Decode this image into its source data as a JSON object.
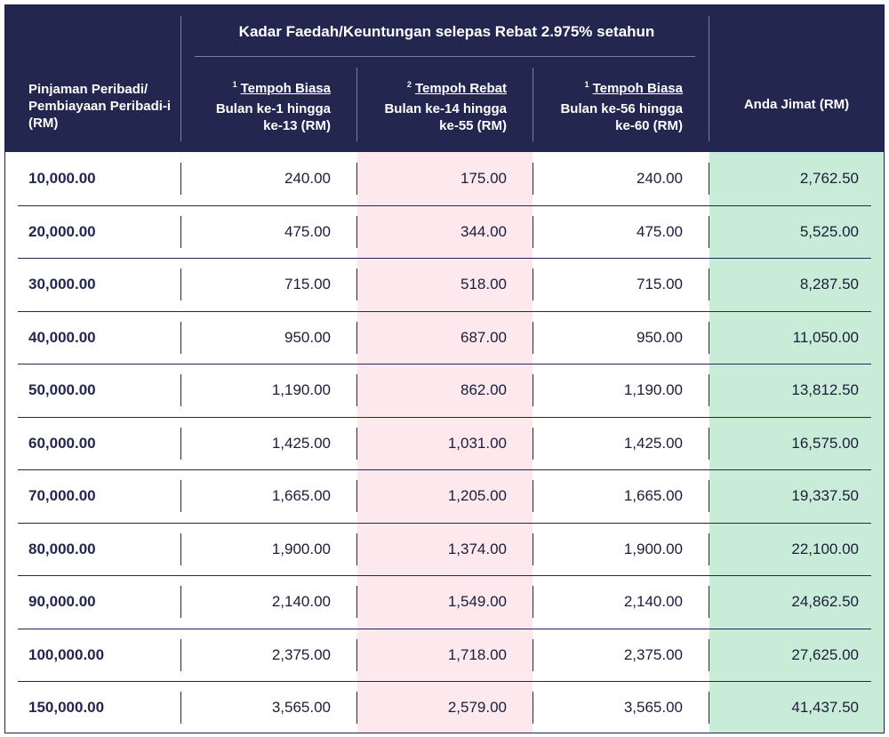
{
  "header": {
    "left_label": "Pinjaman Peribadi/ Pembiayaan Peribadi-i (RM)",
    "group_title": "Kadar Faedah/Keuntungan selepas Rebat 2.975% setahun",
    "columns": [
      {
        "marker": "1",
        "title": "Tempoh Biasa",
        "line1": "Bulan ke-1 hingga",
        "line2": "ke-13 (RM)"
      },
      {
        "marker": "2",
        "title": "Tempoh Rebat",
        "line1": "Bulan ke-14 hingga",
        "line2": "ke-55 (RM)"
      },
      {
        "marker": "1",
        "title": "Tempoh Biasa",
        "line1": "Bulan ke-56 hingga",
        "line2": "ke-60 (RM)"
      }
    ],
    "right_label": "Anda Jimat (RM)"
  },
  "colors": {
    "header_bg": "#23264f",
    "rebate_col_bg": "#fde8ee",
    "savings_col_bg": "#c9ecd8"
  },
  "rows": [
    {
      "amount": "10,000.00",
      "c1": "240.00",
      "c2": "175.00",
      "c3": "240.00",
      "save": "2,762.50"
    },
    {
      "amount": "20,000.00",
      "c1": "475.00",
      "c2": "344.00",
      "c3": "475.00",
      "save": "5,525.00"
    },
    {
      "amount": "30,000.00",
      "c1": "715.00",
      "c2": "518.00",
      "c3": "715.00",
      "save": "8,287.50"
    },
    {
      "amount": "40,000.00",
      "c1": "950.00",
      "c2": "687.00",
      "c3": "950.00",
      "save": "11,050.00"
    },
    {
      "amount": "50,000.00",
      "c1": "1,190.00",
      "c2": "862.00",
      "c3": "1,190.00",
      "save": "13,812.50"
    },
    {
      "amount": "60,000.00",
      "c1": "1,425.00",
      "c2": "1,031.00",
      "c3": "1,425.00",
      "save": "16,575.00"
    },
    {
      "amount": "70,000.00",
      "c1": "1,665.00",
      "c2": "1,205.00",
      "c3": "1,665.00",
      "save": "19,337.50"
    },
    {
      "amount": "80,000.00",
      "c1": "1,900.00",
      "c2": "1,374.00",
      "c3": "1,900.00",
      "save": "22,100.00"
    },
    {
      "amount": "90,000.00",
      "c1": "2,140.00",
      "c2": "1,549.00",
      "c3": "2,140.00",
      "save": "24,862.50"
    },
    {
      "amount": "100,000.00",
      "c1": "2,375.00",
      "c2": "1,718.00",
      "c3": "2,375.00",
      "save": "27,625.00"
    },
    {
      "amount": "150,000.00",
      "c1": "3,565.00",
      "c2": "2,579.00",
      "c3": "3,565.00",
      "save": "41,437.50"
    }
  ]
}
